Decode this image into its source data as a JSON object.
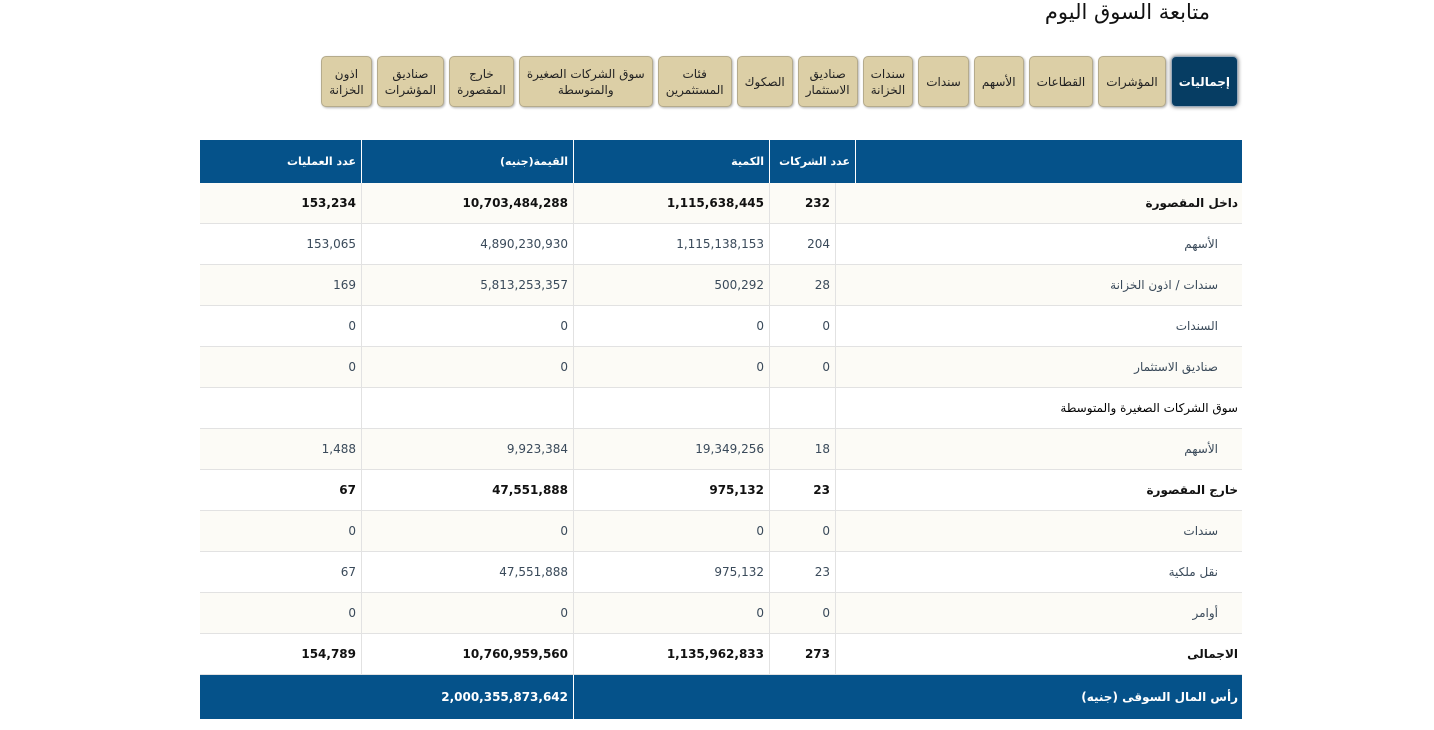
{
  "page_title": "متابعة السوق اليوم",
  "tabs": [
    {
      "label": "إجماليات",
      "active": true
    },
    {
      "label": "المؤشرات"
    },
    {
      "label": "القطاعات"
    },
    {
      "label": "الأسهم"
    },
    {
      "label": "سندات"
    },
    {
      "label": "سندات\nالخزانة"
    },
    {
      "label": "صناديق\nالاستثمار"
    },
    {
      "label": "الصكوك"
    },
    {
      "label": "فئات\nالمستثمرين"
    },
    {
      "label": "سوق الشركات الصغيرة\nوالمتوسطة"
    },
    {
      "label": "خارج\nالمقصورة"
    },
    {
      "label": "صناديق\nالمؤشرات"
    },
    {
      "label": "اذون\nالخزانة"
    }
  ],
  "table": {
    "headers": [
      "",
      "عدد الشركات",
      "الكمية",
      "القيمة(جنيه)",
      "عدد العمليات"
    ],
    "rows": [
      {
        "type": "bold",
        "cells": [
          "داخل المقصورة",
          "232",
          "1,115,638,445",
          "10,703,484,288",
          "153,234"
        ]
      },
      {
        "type": "sub",
        "cells": [
          "الأسهم",
          "204",
          "1,115,138,153",
          "4,890,230,930",
          "153,065"
        ]
      },
      {
        "type": "sub",
        "cells": [
          "سندات / اذون الخزانة",
          "28",
          "500,292",
          "5,813,253,357",
          "169"
        ]
      },
      {
        "type": "sub",
        "cells": [
          "السندات",
          "0",
          "0",
          "0",
          "0"
        ]
      },
      {
        "type": "sub",
        "cells": [
          "صناديق الاستثمار",
          "0",
          "0",
          "0",
          "0"
        ]
      },
      {
        "type": "normal",
        "cells": [
          "سوق الشركات الصغيرة والمتوسطة",
          "",
          "",
          "",
          ""
        ]
      },
      {
        "type": "sub",
        "cells": [
          "الأسهم",
          "18",
          "19,349,256",
          "9,923,384",
          "1,488"
        ]
      },
      {
        "type": "bold",
        "cells": [
          "خارج المقصورة",
          "23",
          "975,132",
          "47,551,888",
          "67"
        ]
      },
      {
        "type": "sub",
        "cells": [
          "سندات",
          "0",
          "0",
          "0",
          "0"
        ]
      },
      {
        "type": "sub",
        "cells": [
          "نقل ملكية",
          "23",
          "975,132",
          "47,551,888",
          "67"
        ]
      },
      {
        "type": "sub",
        "cells": [
          "أوامر",
          "0",
          "0",
          "0",
          "0"
        ]
      },
      {
        "type": "bold",
        "cells": [
          "الاجمالى",
          "273",
          "1,135,962,833",
          "10,760,959,560",
          "154,789"
        ]
      }
    ],
    "footer": {
      "label": "رأس المال السوقى (جنيه)",
      "value": "2,000,355,873,642"
    }
  }
}
